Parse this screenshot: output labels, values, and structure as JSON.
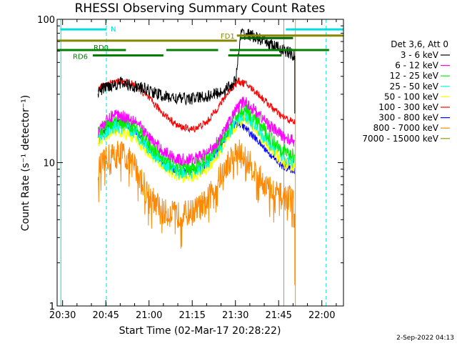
{
  "chart_data": {
    "type": "line",
    "title": "RHESSI Observing Summary Count Rates",
    "xlabel": "Start Time (02-Mar-17 20:28:22)",
    "ylabel": "Count Rate (s⁻¹ detector⁻¹)",
    "yscale": "log",
    "ylim": [
      1,
      100
    ],
    "y_ticks": [
      {
        "value": 1,
        "label": "1"
      },
      {
        "value": 10,
        "label": "10"
      },
      {
        "value": 100,
        "label": "100"
      }
    ],
    "xlim_minutes": [
      -1.9,
      97.5
    ],
    "x_ticks": [
      {
        "minute": 0,
        "label": "20:30"
      },
      {
        "minute": 15,
        "label": "20:45"
      },
      {
        "minute": 30,
        "label": "21:00"
      },
      {
        "minute": 45,
        "label": "21:15"
      },
      {
        "minute": 60,
        "label": "21:30"
      },
      {
        "minute": 75,
        "label": "21:45"
      },
      {
        "minute": 90,
        "label": "22:00"
      }
    ],
    "legend_title": "Det 3,6, Att 0",
    "data_start_minute": 12.3,
    "data_end_minute": 80.6,
    "series": [
      {
        "name": "3 - 6 keV",
        "color": "#000000",
        "spread": 0.1,
        "anchors": [
          [
            12.3,
            31
          ],
          [
            15,
            34
          ],
          [
            20,
            36
          ],
          [
            25,
            34
          ],
          [
            30,
            32
          ],
          [
            35,
            29
          ],
          [
            40,
            28
          ],
          [
            45,
            28
          ],
          [
            50,
            29
          ],
          [
            55,
            31
          ],
          [
            58,
            34
          ],
          [
            60,
            37
          ],
          [
            62,
            80
          ],
          [
            65,
            78
          ],
          [
            70,
            70
          ],
          [
            75,
            63
          ],
          [
            79,
            58
          ],
          [
            80.6,
            55
          ]
        ]
      },
      {
        "name": "6 - 12 keV",
        "color": "#ff00ff",
        "spread": 0.1,
        "anchors": [
          [
            12.3,
            17
          ],
          [
            18,
            22
          ],
          [
            25,
            20
          ],
          [
            30,
            15
          ],
          [
            35,
            12
          ],
          [
            40,
            10.5
          ],
          [
            45,
            10.5
          ],
          [
            50,
            11.5
          ],
          [
            55,
            15
          ],
          [
            60,
            23
          ],
          [
            63,
            27
          ],
          [
            67,
            23
          ],
          [
            72,
            18
          ],
          [
            77,
            15
          ],
          [
            80.6,
            14
          ]
        ]
      },
      {
        "name": "12 - 25 keV",
        "color": "#00ee00",
        "spread": 0.12,
        "anchors": [
          [
            12.3,
            16
          ],
          [
            18,
            20
          ],
          [
            25,
            18
          ],
          [
            30,
            13.5
          ],
          [
            35,
            10.5
          ],
          [
            40,
            9.2
          ],
          [
            45,
            9.2
          ],
          [
            50,
            10.3
          ],
          [
            55,
            14
          ],
          [
            60,
            21
          ],
          [
            63,
            24
          ],
          [
            67,
            20
          ],
          [
            72,
            15
          ],
          [
            77,
            12
          ],
          [
            80.6,
            11
          ]
        ]
      },
      {
        "name": "25 - 50 keV",
        "color": "#00ffdd",
        "spread": 0.12,
        "anchors": [
          [
            12.3,
            15
          ],
          [
            18,
            18
          ],
          [
            25,
            16.5
          ],
          [
            30,
            12.5
          ],
          [
            35,
            10
          ],
          [
            40,
            8.6
          ],
          [
            45,
            8.6
          ],
          [
            50,
            9.6
          ],
          [
            55,
            13
          ],
          [
            60,
            19
          ],
          [
            63,
            22
          ],
          [
            67,
            18
          ],
          [
            72,
            13.5
          ],
          [
            77,
            11
          ],
          [
            80.6,
            10
          ]
        ]
      },
      {
        "name": "50 - 100 keV",
        "color": "#ffff00",
        "spread": 0.1,
        "anchors": [
          [
            12.3,
            14
          ],
          [
            18,
            17
          ],
          [
            25,
            15
          ],
          [
            30,
            11.5
          ],
          [
            35,
            9.3
          ],
          [
            40,
            8
          ],
          [
            45,
            8
          ],
          [
            50,
            9
          ],
          [
            55,
            12
          ],
          [
            60,
            18
          ],
          [
            63,
            21
          ],
          [
            67,
            17
          ],
          [
            72,
            12.5
          ],
          [
            77,
            10
          ],
          [
            80.6,
            9.2
          ]
        ]
      },
      {
        "name": "100 - 300 keV",
        "color": "#ff0000",
        "spread": 0.06,
        "anchors": [
          [
            12.3,
            33
          ],
          [
            16,
            36
          ],
          [
            20,
            37
          ],
          [
            25,
            35
          ],
          [
            30,
            28
          ],
          [
            35,
            22
          ],
          [
            40,
            18
          ],
          [
            45,
            17
          ],
          [
            50,
            19
          ],
          [
            55,
            26
          ],
          [
            58,
            32
          ],
          [
            61,
            37
          ],
          [
            64,
            35
          ],
          [
            68,
            30
          ],
          [
            72,
            25
          ],
          [
            76,
            21
          ],
          [
            80.6,
            19
          ]
        ]
      },
      {
        "name": "300 - 800 keV",
        "color": "#0000ff",
        "spread": 0.06,
        "anchors": [
          [
            12.3,
            14
          ],
          [
            16,
            18
          ],
          [
            20,
            19.5
          ],
          [
            25,
            17
          ],
          [
            30,
            12.5
          ],
          [
            35,
            9.8
          ],
          [
            40,
            8.7
          ],
          [
            45,
            8.7
          ],
          [
            50,
            9.8
          ],
          [
            55,
            13
          ],
          [
            58,
            16.5
          ],
          [
            61,
            19
          ],
          [
            64,
            17
          ],
          [
            68,
            14
          ],
          [
            72,
            11.5
          ],
          [
            76,
            9.5
          ],
          [
            80.6,
            8.8
          ]
        ]
      },
      {
        "name": "800 - 7000 keV",
        "color": "#ff8800",
        "spread": 0.22,
        "anchors": [
          [
            12.3,
            9
          ],
          [
            16,
            11
          ],
          [
            20,
            12
          ],
          [
            25,
            9.5
          ],
          [
            30,
            6
          ],
          [
            35,
            4.5
          ],
          [
            40,
            4.3
          ],
          [
            45,
            4.5
          ],
          [
            50,
            5.3
          ],
          [
            55,
            8.2
          ],
          [
            58,
            10.5
          ],
          [
            61,
            12
          ],
          [
            64,
            10.5
          ],
          [
            68,
            8
          ],
          [
            72,
            6.5
          ],
          [
            76,
            5.8
          ],
          [
            80.6,
            5.5
          ]
        ]
      },
      {
        "name": "7000 - 15000 keV",
        "color": "#999900",
        "spread": 0.06,
        "anchors": []
      }
    ],
    "annotations": [
      {
        "label": "N",
        "color": "#00dddd",
        "y_value": 85,
        "x_start": -0.8,
        "x_end": 15.2
      },
      {
        "label": "",
        "color": "#00dddd",
        "y_value": 85,
        "x_start": 77.5,
        "x_end": 97.5
      },
      {
        "label": "FD1",
        "color": "#888800",
        "y_value": 77,
        "x_start": 60.5,
        "x_end": 97.5
      },
      {
        "label": "",
        "color": "#888800",
        "y_value": 71,
        "x_start": -1.9,
        "x_end": 60.5
      },
      {
        "label": "",
        "color": "#006600",
        "y_value": 74,
        "x_start": 61.5,
        "x_end": 80
      },
      {
        "label": "RD0",
        "color": "#008000",
        "y_value": 61,
        "x_start": -1.9,
        "x_end": 92.5
      },
      {
        "label": "RD6",
        "color": "#008000",
        "y_value": 56,
        "x_start": 10.5,
        "x_end": 35
      },
      {
        "label": "",
        "color": "#008000",
        "y_value": 56,
        "x_start": 57.5,
        "x_end": 76
      }
    ],
    "rd0_gaps": [
      [
        22,
        36
      ],
      [
        54,
        58
      ]
    ],
    "vertical_lines": [
      {
        "minute": -0.6,
        "color": "#00dddd",
        "style": "solid"
      },
      {
        "minute": 15.2,
        "color": "#00dddd",
        "style": "dashed"
      },
      {
        "minute": 76.8,
        "color": "#00dddd",
        "style": "solid"
      },
      {
        "minute": 80.8,
        "color": "#ddaa00",
        "style": "solid"
      },
      {
        "minute": 91.5,
        "color": "#00dddd",
        "style": "dashed"
      }
    ],
    "footer_date": "2-Sep-2022 04:13"
  }
}
